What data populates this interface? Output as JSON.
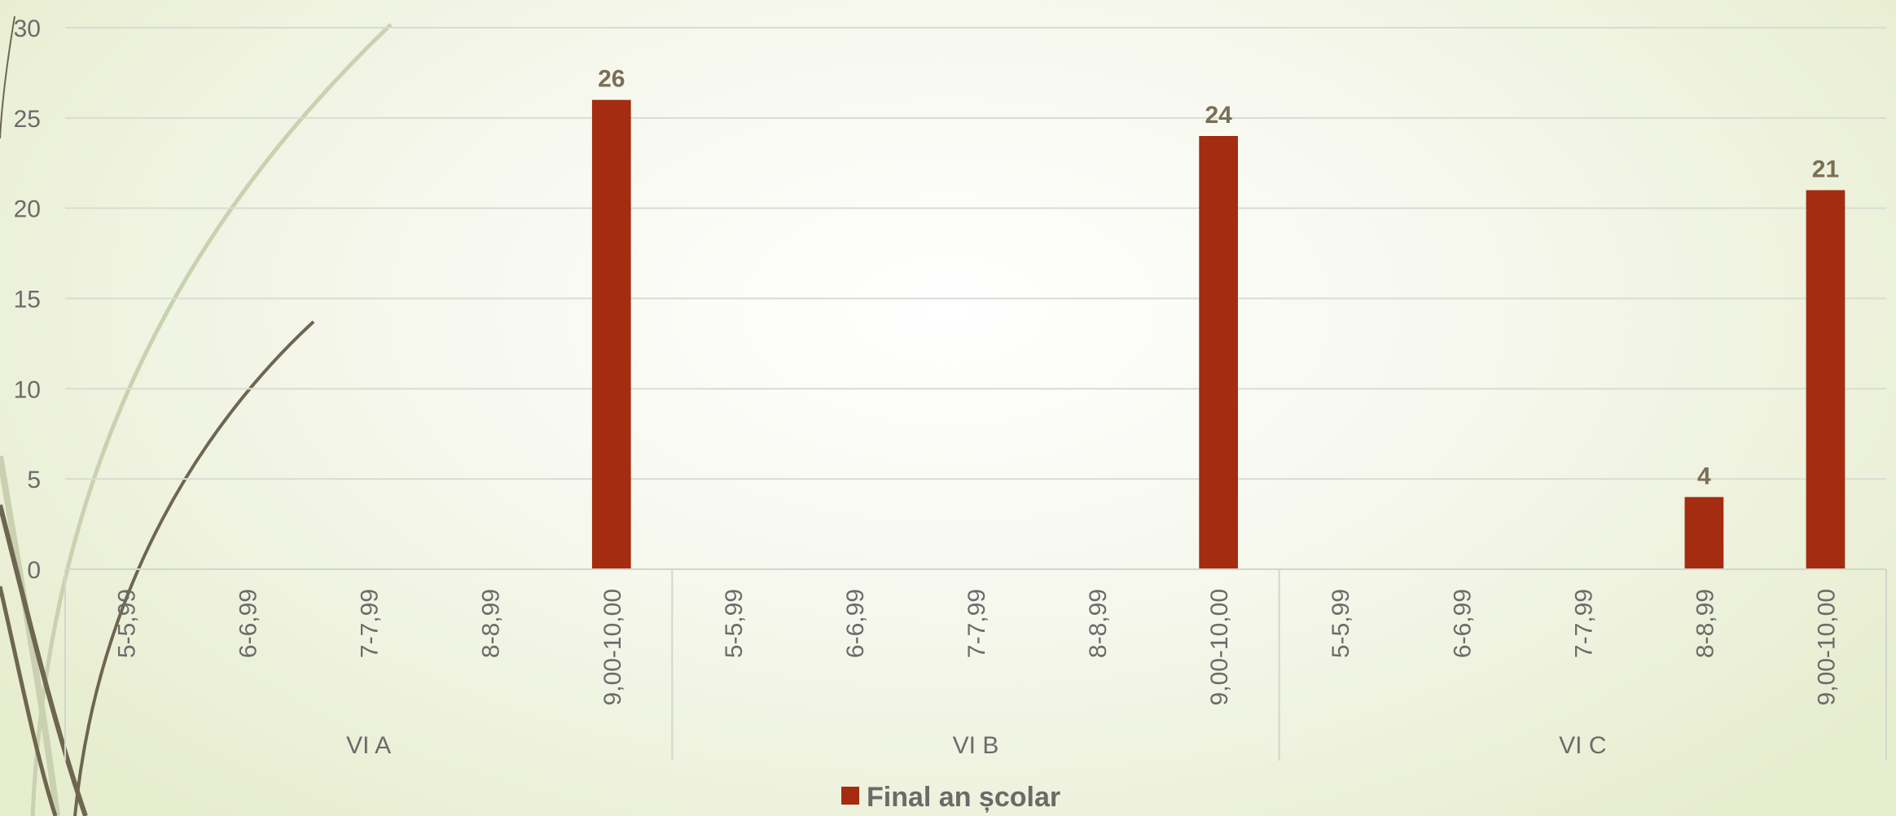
{
  "chart_data": {
    "type": "bar",
    "groups": [
      {
        "name": "VI A",
        "categories": [
          "5-5,99",
          "6-6,99",
          "7-7,99",
          "8-8,99",
          "9,00-10,00"
        ],
        "values": [
          0,
          0,
          0,
          0,
          26
        ]
      },
      {
        "name": "VI B",
        "categories": [
          "5-5,99",
          "6-6,99",
          "7-7,99",
          "8-8,99",
          "9,00-10,00"
        ],
        "values": [
          0,
          0,
          0,
          0,
          24
        ]
      },
      {
        "name": "VI C",
        "categories": [
          "5-5,99",
          "6-6,99",
          "7-7,99",
          "8-8,99",
          "9,00-10,00"
        ],
        "values": [
          0,
          0,
          0,
          4,
          21
        ]
      }
    ],
    "series": [
      {
        "name": "Final an școlar",
        "color": "#a32c11"
      }
    ],
    "title": "",
    "xlabel": "",
    "ylabel": "",
    "ylim": [
      0,
      30
    ],
    "yticks": [
      0,
      5,
      10,
      15,
      20,
      25,
      30
    ],
    "grid": true,
    "legend_position": "bottom"
  },
  "colors": {
    "bar": "#a32c11",
    "gridline": "#d9dcd2",
    "axis": "#d3d6cc",
    "data_label": "#7a6f55",
    "decor_dark": "#6e6650",
    "decor_light": "#c9d1b0"
  }
}
